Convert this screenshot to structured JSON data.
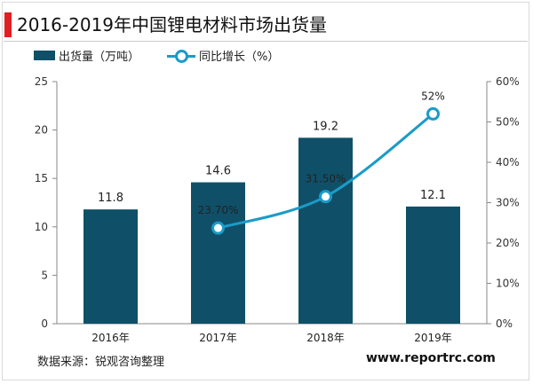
{
  "header": {
    "title": "2016-2019年中国锂电材料市场出货量"
  },
  "colors": {
    "bar": "#0f5068",
    "line": "#1b9bc8",
    "title_accent": "#e02020"
  },
  "legend": {
    "bar_label": "出货量（万吨）",
    "line_label": "同比增长（%）"
  },
  "footer": {
    "source": "数据来源：锐观咨询整理",
    "website": "www.reportrc.com"
  },
  "chart_data": {
    "type": "bar",
    "categories": [
      "2016年",
      "2017年",
      "2018年",
      "2019年"
    ],
    "series": [
      {
        "name": "出货量（万吨）",
        "type": "bar",
        "axis": "left",
        "values": [
          11.8,
          14.6,
          19.2,
          12.1
        ],
        "labels": [
          "11.8",
          "14.6",
          "19.2",
          "12.1"
        ]
      },
      {
        "name": "同比增长（%）",
        "type": "line",
        "axis": "right",
        "values": [
          null,
          23.7,
          31.5,
          52
        ],
        "labels": [
          "",
          "23.70%",
          "31.50%",
          "52%"
        ]
      }
    ],
    "y_left": {
      "range": [
        0,
        25
      ],
      "ticks": [
        "0",
        "5",
        "10",
        "15",
        "20",
        "25"
      ]
    },
    "y_right": {
      "range": [
        0,
        60
      ],
      "ticks": [
        "0%",
        "10%",
        "20%",
        "30%",
        "40%",
        "50%",
        "60%"
      ]
    },
    "grid": false,
    "legend_position": "top-left"
  }
}
